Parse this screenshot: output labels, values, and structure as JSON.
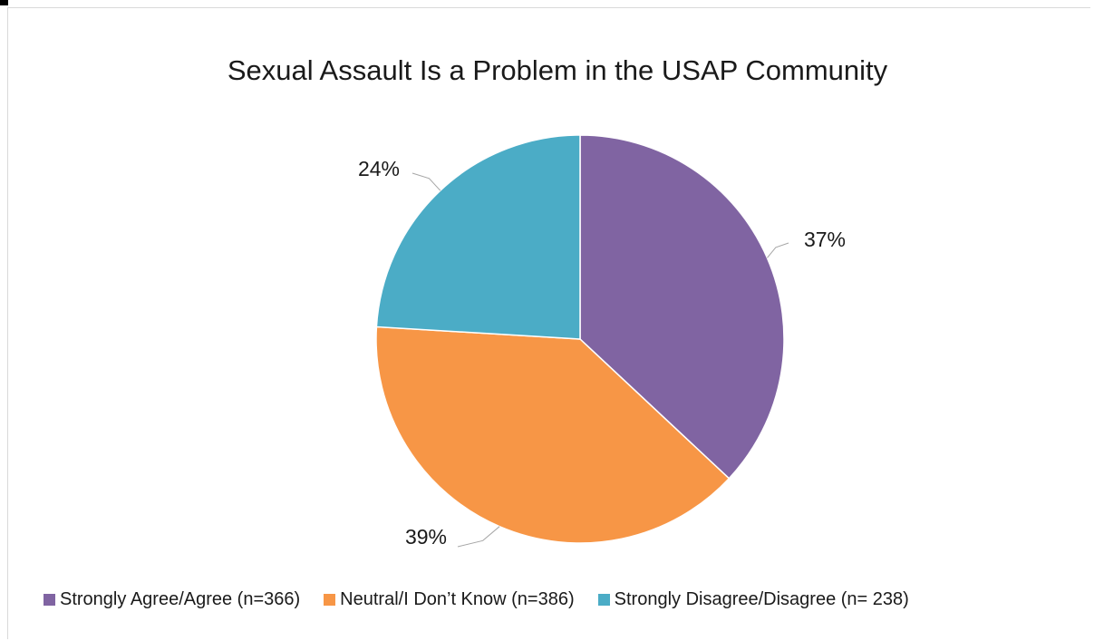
{
  "chart_data": {
    "type": "pie",
    "title": "Sexual Assault Is a Problem in the USAP Community",
    "slices": [
      {
        "label": "Strongly Agree/Agree (n=366)",
        "value": 366,
        "percent_label": "37%",
        "color": "#8064a2"
      },
      {
        "label": "Neutral/I Don’t Know (n=386)",
        "value": 386,
        "percent_label": "39%",
        "color": "#f79646"
      },
      {
        "label": "Strongly Disagree/Disagree (n= 238)",
        "value": 238,
        "percent_label": "24%",
        "color": "#4bacc6"
      }
    ],
    "legend_position": "bottom"
  }
}
